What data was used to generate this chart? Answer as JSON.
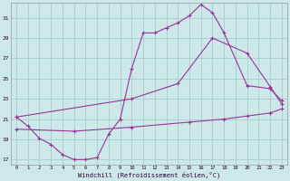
{
  "xlabel": "Windchill (Refroidissement éolien,°C)",
  "bg_color": "#cce8e8",
  "grid_color": "#aacccc",
  "line_color": "#993399",
  "xlim": [
    -0.5,
    23.5
  ],
  "ylim": [
    16.5,
    32.5
  ],
  "xticks": [
    0,
    1,
    2,
    3,
    4,
    5,
    6,
    7,
    8,
    9,
    10,
    11,
    12,
    13,
    14,
    15,
    16,
    17,
    18,
    19,
    20,
    21,
    22,
    23
  ],
  "yticks": [
    17,
    19,
    21,
    23,
    25,
    27,
    29,
    31
  ],
  "line1_x": [
    0,
    1,
    2,
    3,
    4,
    5,
    6,
    7,
    8,
    9,
    10,
    11,
    12,
    13,
    14,
    15,
    16,
    17,
    18,
    20,
    22,
    23
  ],
  "line1_y": [
    21.2,
    20.3,
    19.1,
    18.5,
    17.5,
    17.0,
    17.0,
    17.2,
    19.5,
    21.0,
    26.0,
    29.5,
    29.5,
    30.0,
    30.5,
    31.2,
    32.3,
    31.5,
    29.5,
    24.3,
    24.0,
    22.8
  ],
  "line2_x": [
    0,
    10,
    14,
    17,
    20,
    22,
    23
  ],
  "line2_y": [
    21.2,
    23.0,
    24.5,
    29.0,
    27.5,
    24.2,
    22.5
  ],
  "line3_x": [
    0,
    5,
    10,
    15,
    18,
    20,
    22,
    23
  ],
  "line3_y": [
    20.0,
    19.8,
    20.2,
    20.7,
    21.0,
    21.3,
    21.6,
    22.0
  ]
}
